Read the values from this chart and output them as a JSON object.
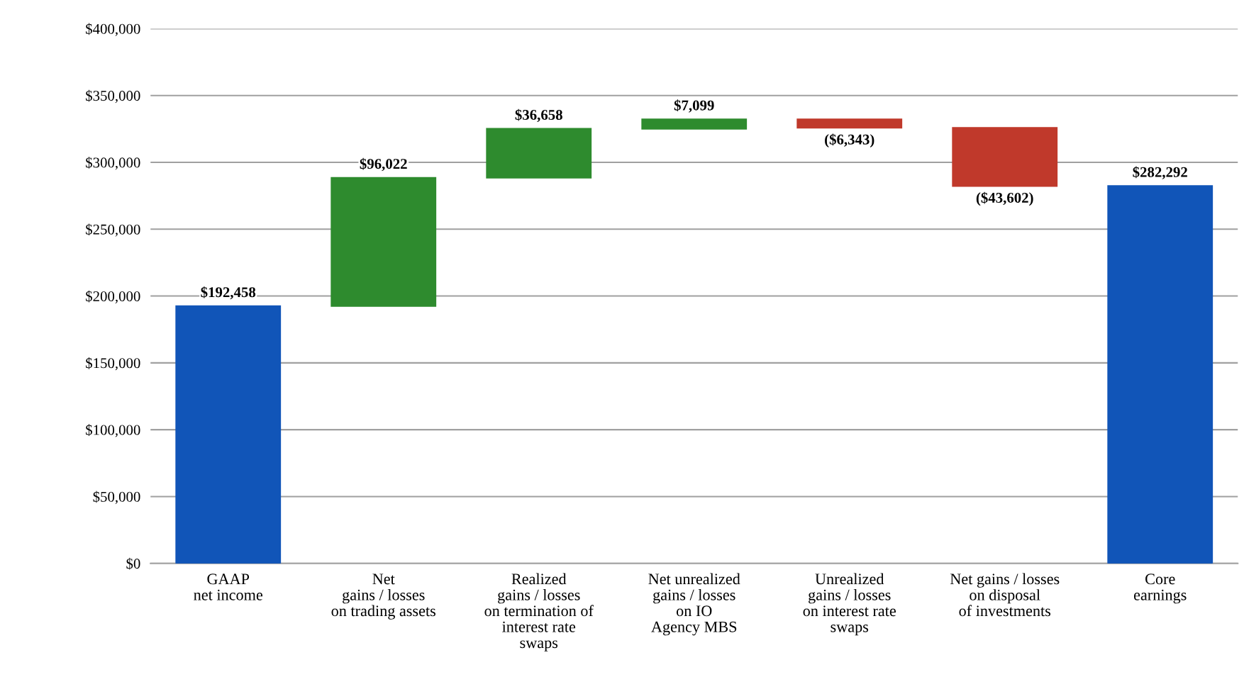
{
  "chart_data": {
    "type": "bar",
    "categories": [
      "GAAP\nnet income",
      "Net\ngains / losses\non trading assets",
      "Realized\ngains / losses\non termination of\ninterest rate\nswaps",
      "Net unrealized\ngains / losses\non IO\nAgency MBS",
      "Unrealized\ngains / losses\non interest rate\nswaps",
      "Net gains / losses\non disposal\nof investments",
      "Core\nearnings"
    ],
    "values": [
      192458,
      96022,
      36658,
      7099,
      -6343,
      -43602,
      282292
    ],
    "base": [
      0,
      192458,
      288480,
      325138,
      332237,
      325894,
      0
    ],
    "colors": [
      "#1155b8",
      "#2e8b2e",
      "#2e8b2e",
      "#2e8b2e",
      "#c0392b",
      "#c0392b",
      "#1155b8"
    ],
    "value_labels": [
      "$192,458",
      "$96,022",
      "$36,658",
      "$7,099",
      "($6,343)",
      "($43,602)",
      "$282,292"
    ],
    "ylim": [
      0,
      400000
    ],
    "yticks": [
      {
        "value": 0,
        "label": "$0"
      },
      {
        "value": 50000,
        "label": "$50,000"
      },
      {
        "value": 100000,
        "label": "$100,000"
      },
      {
        "value": 150000,
        "label": "$150,000"
      },
      {
        "value": 200000,
        "label": "$200,000"
      },
      {
        "value": 250000,
        "label": "$250,000"
      },
      {
        "value": 300000,
        "label": "$300,000"
      },
      {
        "value": 350000,
        "label": "$350,000"
      },
      {
        "value": 400000,
        "label": "$400,000"
      }
    ],
    "grid": "y"
  }
}
